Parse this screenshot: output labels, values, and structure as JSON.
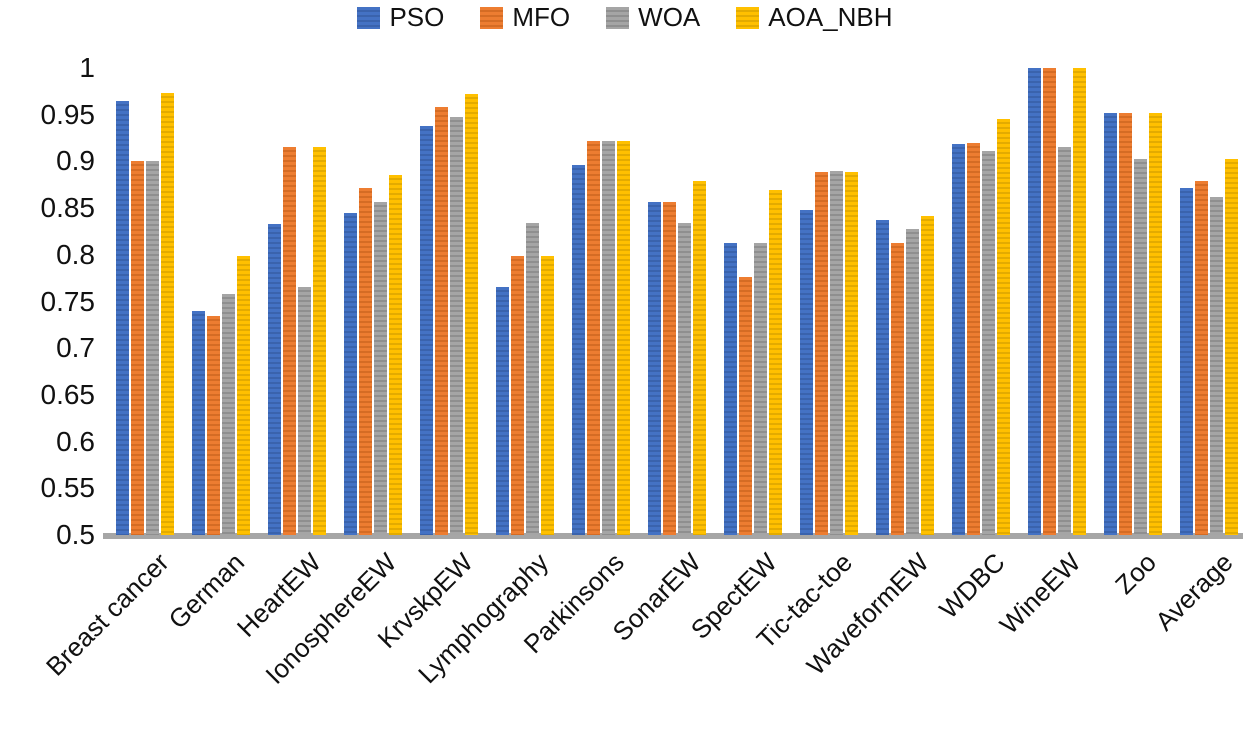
{
  "chart_data": {
    "type": "bar",
    "title": "",
    "xlabel": "",
    "ylabel": "",
    "categories": [
      "Breast cancer",
      "German",
      "HeartEW",
      "IonosphereEW",
      "KrvskpEW",
      "Lymphography",
      "Parkinsons",
      "SonarEW",
      "SpectEW",
      "Tic-tac-toe",
      "WaveformEW",
      "WDBC",
      "WineEW",
      "Zoo",
      "Average"
    ],
    "series": [
      {
        "name": "PSO",
        "color": "#4472c4",
        "stripe_color": "#3a63ad",
        "values": [
          0.965,
          0.74,
          0.833,
          0.845,
          0.938,
          0.766,
          0.896,
          0.856,
          0.813,
          0.848,
          0.837,
          0.919,
          1.0,
          0.952,
          0.872
        ]
      },
      {
        "name": "MFO",
        "color": "#ed7d31",
        "stripe_color": "#d56c24",
        "values": [
          0.9,
          0.734,
          0.915,
          0.871,
          0.958,
          0.799,
          0.922,
          0.856,
          0.776,
          0.889,
          0.813,
          0.92,
          1.0,
          0.952,
          0.879
        ]
      },
      {
        "name": "WOA",
        "color": "#a5a5a5",
        "stripe_color": "#8f8f8f",
        "values": [
          0.9,
          0.758,
          0.766,
          0.857,
          0.948,
          0.834,
          0.922,
          0.834,
          0.813,
          0.89,
          0.828,
          0.911,
          0.915,
          0.903,
          0.862
        ]
      },
      {
        "name": "AOA_NBH",
        "color": "#ffc000",
        "stripe_color": "#e3ab00",
        "values": [
          0.973,
          0.799,
          0.915,
          0.885,
          0.972,
          0.799,
          0.922,
          0.879,
          0.869,
          0.889,
          0.842,
          0.945,
          1.0,
          0.952,
          0.903
        ]
      }
    ],
    "ylim": [
      0.5,
      1.0
    ],
    "ytick_step": 0.05,
    "ytick_labels": [
      "1",
      "0.95",
      "0.9",
      "0.85",
      "0.8",
      "0.75",
      "0.7",
      "0.65",
      "0.6",
      "0.55",
      "0.5"
    ],
    "legend_position": "top-center",
    "grid": false,
    "axis_line_color": "#a6a6a6",
    "text_color": "#111111",
    "background_color": "#ffffff"
  }
}
